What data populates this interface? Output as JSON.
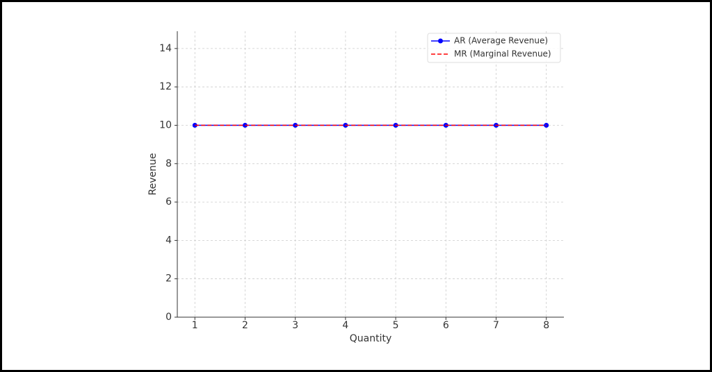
{
  "chart_data": {
    "type": "line",
    "x": [
      1,
      2,
      3,
      4,
      5,
      6,
      7,
      8
    ],
    "series": [
      {
        "name": "AR (Average Revenue)",
        "color": "#0000ff",
        "linestyle": "solid",
        "marker": true,
        "values": [
          10,
          10,
          10,
          10,
          10,
          10,
          10,
          10
        ]
      },
      {
        "name": "MR (Marginal Revenue)",
        "color": "#ff0000",
        "linestyle": "dashed",
        "marker": false,
        "values": [
          10,
          10,
          10,
          10,
          10,
          10,
          10,
          10
        ]
      }
    ],
    "x_label": "Quantity",
    "y_label": "Revenue",
    "xlim": [
      0.65,
      8.35
    ],
    "ylim": [
      0,
      14.9
    ],
    "xticks": [
      1,
      2,
      3,
      4,
      5,
      6,
      7,
      8
    ],
    "yticks": [
      0,
      2,
      4,
      6,
      8,
      10,
      12,
      14
    ],
    "grid": true,
    "legend": "upper-right"
  }
}
